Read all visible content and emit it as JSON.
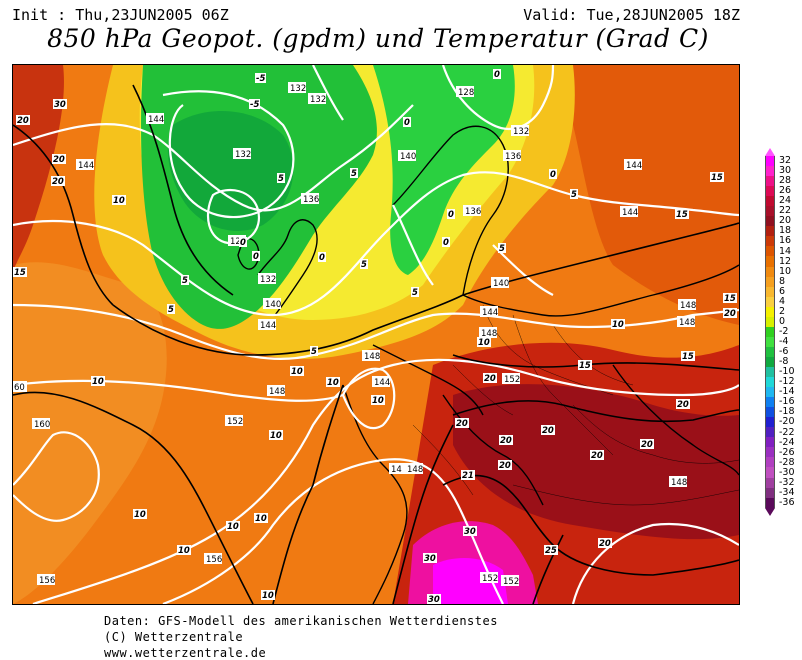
{
  "header": {
    "init": "Init : Thu,23JUN2005 06Z",
    "valid": "Valid: Tue,28JUN2005 18Z",
    "title": "850 hPa Geopot. (gpdm) und Temperatur (Grad C)"
  },
  "colorbar": {
    "labels": [
      "32",
      "30",
      "28",
      "26",
      "24",
      "22",
      "20",
      "18",
      "16",
      "14",
      "12",
      "10",
      "8",
      "6",
      "4",
      "2",
      "0",
      "-2",
      "-4",
      "-6",
      "-8",
      "-10",
      "-12",
      "-14",
      "-16",
      "-18",
      "-20",
      "-22",
      "-24",
      "-26",
      "-28",
      "-30",
      "-32",
      "-34",
      "-36"
    ],
    "colors": [
      "#ff00ff",
      "#ff22cc",
      "#ee1188",
      "#dd0a55",
      "#c00a30",
      "#a8102a",
      "#901020",
      "#b22010",
      "#cc3a08",
      "#dd5500",
      "#e87000",
      "#f08a10",
      "#f5a020",
      "#f8b830",
      "#fad040",
      "#f5f000",
      "#d8f000",
      "#30d020",
      "#40e040",
      "#20c040",
      "#10a840",
      "#20c0a0",
      "#20d8d8",
      "#20b8f0",
      "#1080f0",
      "#1050e0",
      "#2020d0",
      "#5020c0",
      "#8020c0",
      "#9a30c0",
      "#b040c0",
      "#c050c0",
      "#a040a0",
      "#803080",
      "#5a0a5a"
    ]
  },
  "map": {
    "geopotential_labels": [
      "128",
      "132",
      "136",
      "140",
      "144",
      "148",
      "152",
      "156",
      "160"
    ],
    "temperature_labels": [
      "-5",
      "0",
      "5",
      "10",
      "15",
      "20",
      "25",
      "30"
    ]
  },
  "footer": {
    "line1": "Daten: GFS-Modell des amerikanischen Wetterdienstes",
    "line2": "(C) Wetterzentrale",
    "line3": "www.wetterzentrale.de"
  }
}
